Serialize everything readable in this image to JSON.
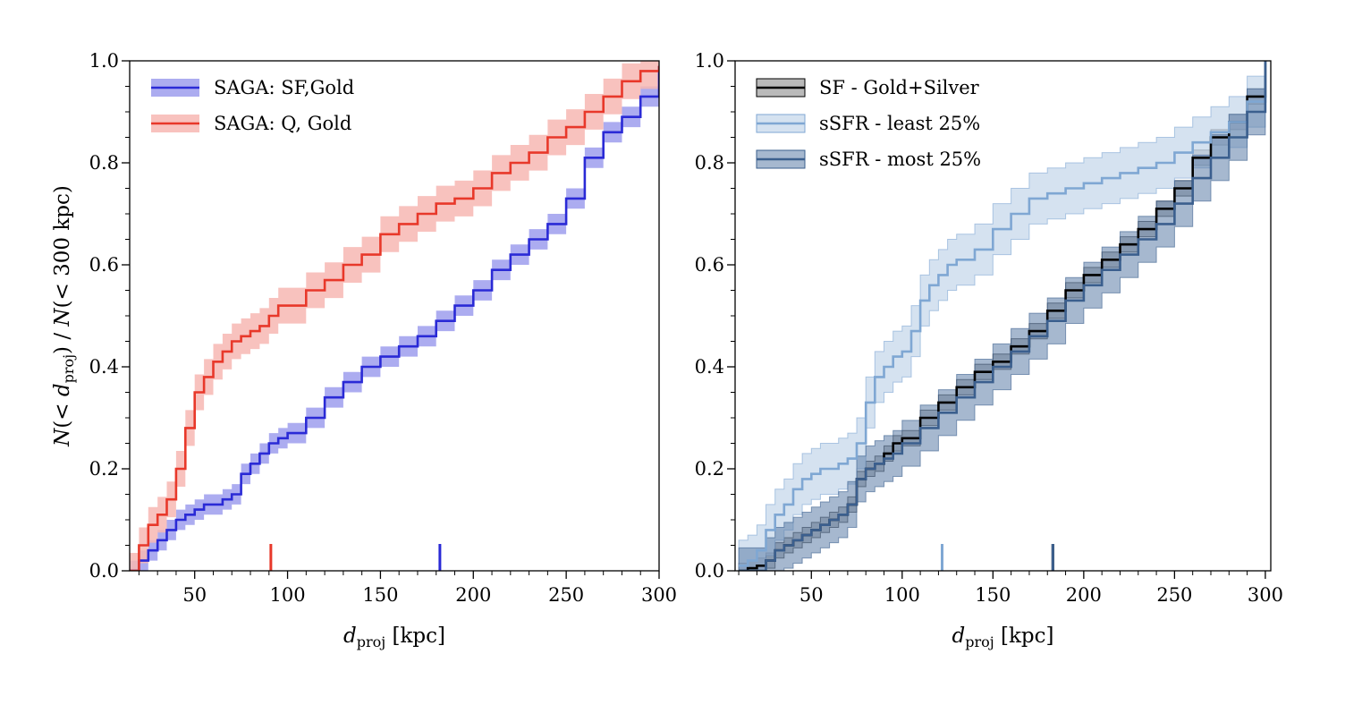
{
  "chart_data": [
    {
      "type": "line",
      "xlabel": "d_proj [kpc]",
      "xlabel_main": "d",
      "xlabel_sub": "proj",
      "xlabel_unit": " [kpc]",
      "ylabel": "N(< d_proj) / N(< 300 kpc)",
      "ylabel_parts": [
        "N",
        "(< ",
        "d",
        "proj",
        ") / ",
        "N",
        "(< 300 kpc)"
      ],
      "xlim": [
        15,
        300
      ],
      "ylim": [
        0,
        1.0
      ],
      "xticks": [
        50,
        100,
        150,
        200,
        250,
        300
      ],
      "yticks": [
        0.0,
        0.2,
        0.4,
        0.6,
        0.8,
        1.0
      ],
      "ytick_labels": [
        "0.0",
        "0.2",
        "0.4",
        "0.6",
        "0.8",
        "1.0"
      ],
      "legend_position": "top-left",
      "series": [
        {
          "name": "SAGA: SF,Gold",
          "color": "#2a2ad6",
          "band_color": "#9d9ded",
          "x": [
            15,
            20,
            25,
            30,
            35,
            40,
            45,
            50,
            55,
            60,
            65,
            70,
            75,
            80,
            85,
            90,
            95,
            100,
            110,
            120,
            130,
            140,
            150,
            160,
            170,
            180,
            190,
            200,
            210,
            220,
            230,
            240,
            250,
            260,
            270,
            280,
            290,
            300
          ],
          "y": [
            0.0,
            0.02,
            0.04,
            0.06,
            0.08,
            0.1,
            0.11,
            0.12,
            0.13,
            0.13,
            0.14,
            0.15,
            0.19,
            0.21,
            0.23,
            0.25,
            0.26,
            0.27,
            0.3,
            0.34,
            0.37,
            0.4,
            0.42,
            0.44,
            0.46,
            0.49,
            0.52,
            0.55,
            0.59,
            0.62,
            0.65,
            0.68,
            0.73,
            0.81,
            0.86,
            0.89,
            0.93,
            0.99
          ],
          "band_halfwidth": 0.02,
          "marker_x": 182
        },
        {
          "name": "SAGA: Q, Gold",
          "color": "#e8382a",
          "band_color": "#f7b7b3",
          "x": [
            15,
            20,
            25,
            30,
            35,
            40,
            45,
            50,
            55,
            60,
            65,
            70,
            75,
            80,
            85,
            90,
            95,
            100,
            110,
            120,
            130,
            140,
            150,
            160,
            170,
            180,
            190,
            200,
            210,
            220,
            230,
            240,
            250,
            260,
            270,
            280,
            290,
            300
          ],
          "y": [
            0.0,
            0.05,
            0.09,
            0.11,
            0.14,
            0.2,
            0.28,
            0.35,
            0.38,
            0.41,
            0.43,
            0.45,
            0.46,
            0.47,
            0.48,
            0.5,
            0.52,
            0.52,
            0.55,
            0.57,
            0.6,
            0.62,
            0.66,
            0.68,
            0.7,
            0.72,
            0.73,
            0.75,
            0.78,
            0.8,
            0.82,
            0.85,
            0.87,
            0.9,
            0.93,
            0.96,
            0.98,
            0.99
          ],
          "band_halfwidth": 0.035,
          "marker_x": 91
        }
      ]
    },
    {
      "type": "line",
      "xlabel": "d_proj [kpc]",
      "xlabel_main": "d",
      "xlabel_sub": "proj",
      "xlabel_unit": " [kpc]",
      "ylabel": "",
      "xlim": [
        8,
        303
      ],
      "ylim": [
        0,
        1.0
      ],
      "xticks": [
        50,
        100,
        150,
        200,
        250,
        300
      ],
      "yticks": [
        0.0,
        0.2,
        0.4,
        0.6,
        0.8,
        1.0
      ],
      "ytick_labels": [
        "0.0",
        "0.2",
        "0.4",
        "0.6",
        "0.8",
        "1.0"
      ],
      "legend_position": "top-left",
      "series": [
        {
          "name": "SF - Gold+Silver",
          "color": "#000000",
          "band_color": "#8c8c8c",
          "band_opacity": 0.6,
          "x": [
            10,
            15,
            20,
            25,
            30,
            35,
            40,
            45,
            50,
            55,
            60,
            65,
            70,
            75,
            80,
            85,
            90,
            95,
            100,
            110,
            120,
            130,
            140,
            150,
            160,
            170,
            180,
            190,
            200,
            210,
            220,
            230,
            240,
            250,
            260,
            270,
            280,
            290,
            300
          ],
          "y": [
            0.0,
            0.005,
            0.01,
            0.02,
            0.04,
            0.05,
            0.06,
            0.07,
            0.08,
            0.09,
            0.1,
            0.11,
            0.13,
            0.18,
            0.2,
            0.21,
            0.23,
            0.25,
            0.26,
            0.3,
            0.33,
            0.36,
            0.39,
            0.41,
            0.44,
            0.47,
            0.51,
            0.55,
            0.58,
            0.61,
            0.64,
            0.67,
            0.71,
            0.75,
            0.81,
            0.85,
            0.88,
            0.93,
            1.0
          ],
          "band_halfwidth": 0.015,
          "marker_x": 183
        },
        {
          "name": "sSFR - least 25%",
          "color": "#7fa7d3",
          "band_color": "#c3d5ea",
          "band_opacity": 0.7,
          "x": [
            10,
            15,
            20,
            25,
            30,
            35,
            40,
            45,
            50,
            55,
            60,
            65,
            70,
            75,
            80,
            85,
            90,
            95,
            100,
            105,
            110,
            115,
            120,
            125,
            130,
            140,
            150,
            160,
            170,
            180,
            190,
            200,
            210,
            220,
            230,
            240,
            250,
            260,
            270,
            280,
            290,
            300
          ],
          "y": [
            0.01,
            0.02,
            0.04,
            0.08,
            0.11,
            0.13,
            0.16,
            0.18,
            0.19,
            0.2,
            0.2,
            0.21,
            0.22,
            0.25,
            0.33,
            0.38,
            0.4,
            0.42,
            0.43,
            0.47,
            0.53,
            0.56,
            0.58,
            0.6,
            0.61,
            0.63,
            0.67,
            0.7,
            0.73,
            0.74,
            0.75,
            0.76,
            0.77,
            0.78,
            0.79,
            0.8,
            0.82,
            0.84,
            0.86,
            0.88,
            0.92,
            1.0
          ],
          "band_halfwidth": 0.05,
          "marker_x": 122
        },
        {
          "name": "sSFR - most 25%",
          "color": "#3b5f8e",
          "band_color": "#5c7ea8",
          "band_opacity": 0.55,
          "x": [
            10,
            15,
            20,
            25,
            30,
            35,
            40,
            45,
            50,
            55,
            60,
            65,
            70,
            75,
            80,
            85,
            90,
            95,
            100,
            110,
            120,
            130,
            140,
            150,
            160,
            170,
            180,
            190,
            200,
            210,
            220,
            230,
            240,
            250,
            260,
            270,
            280,
            290,
            300
          ],
          "y": [
            0.0,
            0.0,
            0.0,
            0.02,
            0.04,
            0.05,
            0.06,
            0.07,
            0.08,
            0.09,
            0.1,
            0.11,
            0.13,
            0.18,
            0.2,
            0.21,
            0.22,
            0.23,
            0.25,
            0.28,
            0.31,
            0.34,
            0.37,
            0.4,
            0.43,
            0.46,
            0.49,
            0.53,
            0.56,
            0.59,
            0.62,
            0.65,
            0.68,
            0.72,
            0.77,
            0.81,
            0.85,
            0.9,
            1.0
          ],
          "band_halfwidth": 0.045,
          "marker_x": 183
        }
      ]
    }
  ]
}
